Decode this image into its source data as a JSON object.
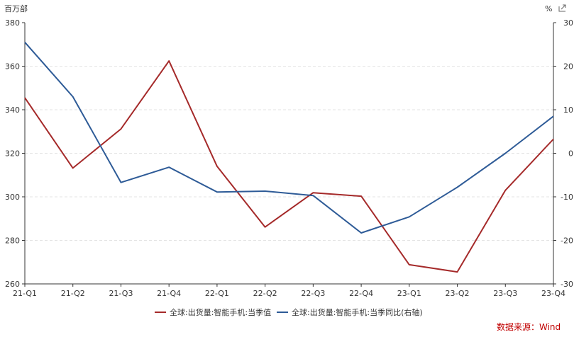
{
  "chart_data": {
    "type": "line",
    "categories": [
      "21-Q1",
      "21-Q2",
      "21-Q3",
      "21-Q4",
      "22-Q1",
      "22-Q2",
      "22-Q3",
      "22-Q4",
      "23-Q1",
      "23-Q2",
      "23-Q3",
      "23-Q4"
    ],
    "series": [
      {
        "name": "全球:出货量:智能手机:当季值",
        "axis": "left",
        "color": "#a52a2a",
        "values": [
          345.5,
          313.2,
          331.2,
          362.4,
          314.0,
          286.1,
          301.9,
          300.3,
          268.8,
          265.5,
          303.0,
          326.5
        ]
      },
      {
        "name": "全球:出货量:智能手机:当季同比(右轴)",
        "axis": "right",
        "color": "#2e5b97",
        "values": [
          25.5,
          13.0,
          -6.7,
          -3.2,
          -8.9,
          -8.7,
          -9.7,
          -18.3,
          -14.6,
          -7.8,
          0.0,
          8.5
        ]
      }
    ],
    "y_left": {
      "unit": "百万部",
      "ylim": [
        260,
        380
      ],
      "ticks": [
        260,
        280,
        300,
        320,
        340,
        360,
        380
      ]
    },
    "y_right": {
      "unit": "%",
      "ylim": [
        -30,
        30
      ],
      "ticks": [
        -30,
        -20,
        -10,
        0,
        10,
        20,
        30
      ]
    },
    "grid": true,
    "legend": "bottom",
    "source": "数据来源：Wind"
  },
  "corner_icon": "expand-icon"
}
